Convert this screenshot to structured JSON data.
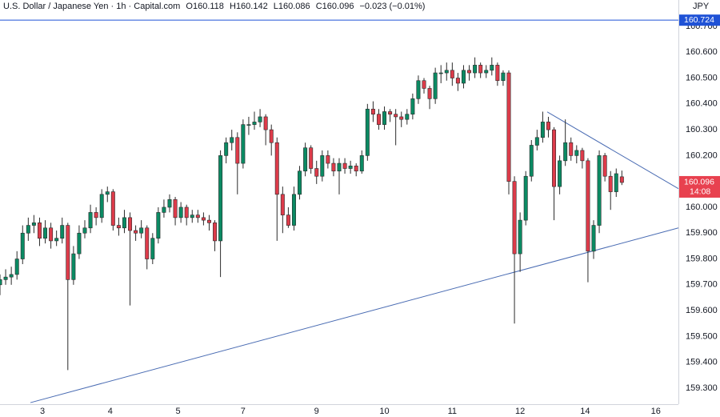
{
  "chart_data": {
    "type": "candlestick",
    "header": {
      "symbol": "U.S. Dollar / Japanese Yen · 1h · Capital.com",
      "open_label": "O",
      "open": 160.118,
      "high_label": "H",
      "high": 160.142,
      "low_label": "L",
      "low": 160.086,
      "close_label": "C",
      "close": 160.096,
      "change": "−0.023 (−0.01%)"
    },
    "currency": "JPY",
    "up_color": "#0b8a63",
    "down_color": "#dd3b4a",
    "xlim": [
      0,
      120
    ],
    "ylim": [
      159.238,
      160.802
    ],
    "xticks": [
      {
        "value": 7.5,
        "label": "3"
      },
      {
        "value": 19.5,
        "label": "4"
      },
      {
        "value": 31.5,
        "label": "5"
      },
      {
        "value": 43,
        "label": "7"
      },
      {
        "value": 56,
        "label": "9"
      },
      {
        "value": 68,
        "label": "10"
      },
      {
        "value": 80,
        "label": "11"
      },
      {
        "value": 92,
        "label": "12"
      },
      {
        "value": 103.5,
        "label": "14"
      },
      {
        "value": 116,
        "label": "16"
      }
    ],
    "yticks": [
      {
        "value": 159.3,
        "label": "159.300"
      },
      {
        "value": 159.4,
        "label": "159.400"
      },
      {
        "value": 159.5,
        "label": "159.500"
      },
      {
        "value": 159.6,
        "label": "159.600"
      },
      {
        "value": 159.7,
        "label": "159.700"
      },
      {
        "value": 159.8,
        "label": "159.800"
      },
      {
        "value": 159.9,
        "label": "159.900"
      },
      {
        "value": 160.0,
        "label": "160.000"
      },
      {
        "value": 160.1,
        "label": "160.100"
      },
      {
        "value": 160.2,
        "label": "160.200"
      },
      {
        "value": 160.3,
        "label": "160.300"
      },
      {
        "value": 160.4,
        "label": "160.400"
      },
      {
        "value": 160.5,
        "label": "160.500"
      },
      {
        "value": 160.6,
        "label": "160.600"
      },
      {
        "value": 160.7,
        "label": "160.700"
      }
    ],
    "grid": false,
    "level": {
      "value": 160.724,
      "color": "#1f52d6"
    },
    "last_price": {
      "value": 160.096,
      "countdown": "14:08",
      "color": "#e8414f"
    },
    "trend_lines": [
      {
        "color": "#4a6cb3",
        "points": [
          [
            5.38,
            159.244
          ],
          [
            120,
            159.92
          ]
        ]
      },
      {
        "color": "#4a6cb3",
        "points": [
          [
            96.8,
            160.369
          ],
          [
            120,
            160.072
          ]
        ]
      }
    ],
    "ohlc": [
      [
        159.7,
        159.74,
        159.66,
        159.72
      ],
      [
        159.72,
        159.76,
        159.7,
        159.73
      ],
      [
        159.73,
        159.77,
        159.7,
        159.74
      ],
      [
        159.74,
        159.83,
        159.72,
        159.8
      ],
      [
        159.8,
        159.93,
        159.78,
        159.9
      ],
      [
        159.9,
        159.96,
        159.87,
        159.93
      ],
      [
        159.93,
        159.97,
        159.9,
        159.94
      ],
      [
        159.94,
        159.96,
        159.85,
        159.88
      ],
      [
        159.88,
        159.95,
        159.86,
        159.92
      ],
      [
        159.92,
        159.94,
        159.84,
        159.87
      ],
      [
        159.87,
        159.91,
        159.85,
        159.88
      ],
      [
        159.88,
        159.96,
        159.86,
        159.93
      ],
      [
        159.93,
        159.94,
        159.37,
        159.72
      ],
      [
        159.72,
        159.85,
        159.7,
        159.82
      ],
      [
        159.82,
        159.93,
        159.8,
        159.9
      ],
      [
        159.9,
        159.95,
        159.88,
        159.92
      ],
      [
        159.92,
        160.01,
        159.9,
        159.98
      ],
      [
        159.98,
        160.0,
        159.93,
        159.96
      ],
      [
        159.96,
        160.07,
        159.94,
        160.05
      ],
      [
        160.05,
        160.08,
        160.02,
        160.06
      ],
      [
        160.06,
        160.07,
        159.91,
        159.93
      ],
      [
        159.93,
        159.96,
        159.89,
        159.92
      ],
      [
        159.92,
        159.99,
        159.9,
        159.96
      ],
      [
        159.96,
        159.98,
        159.62,
        159.91
      ],
      [
        159.91,
        159.93,
        159.87,
        159.9
      ],
      [
        159.9,
        159.95,
        159.88,
        159.92
      ],
      [
        159.92,
        159.93,
        159.76,
        159.8
      ],
      [
        159.8,
        159.9,
        159.78,
        159.88
      ],
      [
        159.88,
        160.0,
        159.86,
        159.98
      ],
      [
        159.98,
        160.03,
        159.96,
        160.0
      ],
      [
        160.0,
        160.05,
        159.98,
        160.03
      ],
      [
        160.03,
        160.04,
        159.93,
        159.96
      ],
      [
        159.96,
        160.02,
        159.94,
        160.0
      ],
      [
        160.0,
        160.01,
        159.93,
        159.96
      ],
      [
        159.96,
        159.99,
        159.94,
        159.97
      ],
      [
        159.97,
        159.99,
        159.94,
        159.96
      ],
      [
        159.96,
        159.98,
        159.93,
        159.95
      ],
      [
        159.95,
        159.97,
        159.91,
        159.94
      ],
      [
        159.94,
        159.95,
        159.83,
        159.87
      ],
      [
        159.87,
        160.22,
        159.73,
        160.2
      ],
      [
        160.2,
        160.27,
        160.17,
        160.25
      ],
      [
        160.25,
        160.3,
        160.22,
        160.27
      ],
      [
        160.27,
        160.29,
        160.05,
        160.17
      ],
      [
        160.17,
        160.34,
        160.15,
        160.32
      ],
      [
        160.32,
        160.35,
        160.28,
        160.32
      ],
      [
        160.32,
        160.37,
        160.3,
        160.33
      ],
      [
        160.33,
        160.38,
        160.31,
        160.35
      ],
      [
        160.35,
        160.36,
        160.24,
        160.3
      ],
      [
        160.3,
        160.32,
        160.2,
        160.25
      ],
      [
        160.25,
        160.27,
        159.87,
        160.05
      ],
      [
        160.05,
        160.08,
        159.9,
        159.97
      ],
      [
        159.97,
        160.0,
        159.92,
        159.93
      ],
      [
        159.93,
        160.08,
        159.91,
        160.05
      ],
      [
        160.05,
        160.16,
        160.03,
        160.14
      ],
      [
        160.14,
        160.25,
        160.12,
        160.23
      ],
      [
        160.23,
        160.24,
        160.13,
        160.15
      ],
      [
        160.15,
        160.18,
        160.09,
        160.12
      ],
      [
        160.12,
        160.22,
        160.1,
        160.2
      ],
      [
        160.2,
        160.22,
        160.15,
        160.17
      ],
      [
        160.17,
        160.19,
        160.12,
        160.14
      ],
      [
        160.14,
        160.19,
        160.05,
        160.17
      ],
      [
        160.17,
        160.19,
        160.13,
        160.15
      ],
      [
        160.15,
        160.18,
        160.13,
        160.16
      ],
      [
        160.16,
        160.17,
        160.12,
        160.14
      ],
      [
        160.14,
        160.22,
        160.13,
        160.2
      ],
      [
        160.2,
        160.4,
        160.18,
        160.38
      ],
      [
        160.38,
        160.41,
        160.33,
        160.36
      ],
      [
        160.36,
        160.38,
        160.3,
        160.32
      ],
      [
        160.32,
        160.39,
        160.3,
        160.37
      ],
      [
        160.37,
        160.38,
        160.33,
        160.36
      ],
      [
        160.36,
        160.38,
        160.24,
        160.35
      ],
      [
        160.35,
        160.37,
        160.31,
        160.34
      ],
      [
        160.34,
        160.38,
        160.32,
        160.36
      ],
      [
        160.36,
        160.44,
        160.34,
        160.42
      ],
      [
        160.42,
        160.51,
        160.4,
        160.49
      ],
      [
        160.49,
        160.5,
        160.44,
        160.46
      ],
      [
        160.46,
        160.47,
        160.38,
        160.42
      ],
      [
        160.42,
        160.54,
        160.4,
        160.52
      ],
      [
        160.52,
        160.55,
        160.48,
        160.52
      ],
      [
        160.52,
        160.56,
        160.49,
        160.53
      ],
      [
        160.53,
        160.56,
        160.47,
        160.5
      ],
      [
        160.5,
        160.52,
        160.45,
        160.48
      ],
      [
        160.48,
        160.55,
        160.46,
        160.53
      ],
      [
        160.53,
        160.55,
        160.49,
        160.52
      ],
      [
        160.52,
        160.58,
        160.5,
        160.55
      ],
      [
        160.55,
        160.56,
        160.5,
        160.52
      ],
      [
        160.52,
        160.55,
        160.5,
        160.53
      ],
      [
        160.53,
        160.58,
        160.51,
        160.55
      ],
      [
        160.55,
        160.56,
        160.47,
        160.49
      ],
      [
        160.49,
        160.53,
        160.47,
        160.52
      ],
      [
        160.52,
        160.53,
        160.05,
        160.1
      ],
      [
        160.1,
        160.12,
        159.55,
        159.82
      ],
      [
        159.82,
        159.98,
        159.75,
        159.95
      ],
      [
        159.95,
        160.14,
        159.93,
        160.12
      ],
      [
        160.12,
        160.26,
        160.1,
        160.24
      ],
      [
        160.24,
        160.3,
        160.22,
        160.27
      ],
      [
        160.27,
        160.37,
        160.25,
        160.33
      ],
      [
        160.33,
        160.35,
        160.27,
        160.3
      ],
      [
        160.3,
        160.31,
        159.95,
        160.08
      ],
      [
        160.08,
        160.2,
        160.05,
        160.18
      ],
      [
        160.18,
        160.34,
        160.16,
        160.25
      ],
      [
        160.25,
        160.27,
        160.18,
        160.2
      ],
      [
        160.2,
        160.24,
        160.17,
        160.22
      ],
      [
        160.22,
        160.23,
        160.15,
        160.18
      ],
      [
        160.18,
        160.19,
        159.71,
        159.83
      ],
      [
        159.83,
        159.95,
        159.8,
        159.93
      ],
      [
        159.93,
        160.22,
        159.9,
        160.2
      ],
      [
        160.2,
        160.21,
        160.1,
        160.12
      ],
      [
        160.12,
        160.14,
        159.99,
        160.06
      ],
      [
        160.06,
        160.15,
        160.04,
        160.13
      ],
      [
        160.118,
        160.142,
        160.086,
        160.096
      ]
    ]
  }
}
